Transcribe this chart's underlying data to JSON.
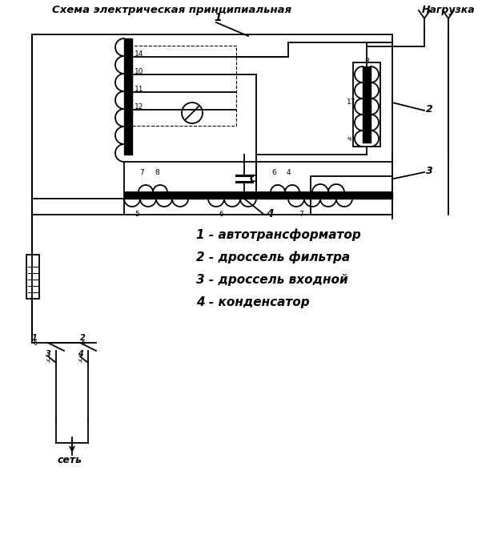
{
  "title": "Схема электрическая принципиальная",
  "ngruzka_label": "Нагрузка",
  "legend": [
    "1 - автотрансформатор",
    "2 - дроссель фильтра",
    "3 - дроссель входной",
    "4 - конденсатор"
  ],
  "bg_color": "#ffffff",
  "line_color": "#000000"
}
